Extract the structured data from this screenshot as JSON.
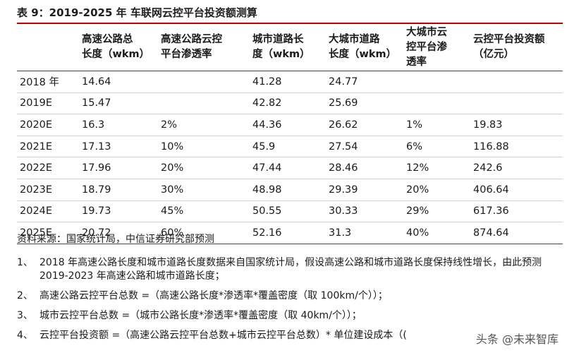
{
  "title": "表 9：2019-2025 年  车联网云控平台投资额测算",
  "table": {
    "headers": [
      "",
      "高速公路总\n长度（wkm）",
      "高速公路云控\n平台渗透率",
      "城市道路长\n度（wkm）",
      "大城市道路\n长度（wkm）",
      "大城市云\n控平台渗\n透率",
      "云控平台投资额\n（亿元）"
    ],
    "rows": [
      [
        "2018 年",
        "14.64",
        "",
        "41.28",
        "24.77",
        "",
        ""
      ],
      [
        "2019E",
        "15.47",
        "",
        "42.82",
        "25.69",
        "",
        ""
      ],
      [
        "2020E",
        "16.3",
        "2%",
        "44.36",
        "26.62",
        "1%",
        "19.83"
      ],
      [
        "2021E",
        "17.13",
        "10%",
        "45.9",
        "27.54",
        "6%",
        "116.88"
      ],
      [
        "2022E",
        "17.96",
        "20%",
        "47.44",
        "28.46",
        "12%",
        "242.6"
      ],
      [
        "2023E",
        "18.79",
        "30%",
        "48.98",
        "29.39",
        "20%",
        "406.64"
      ],
      [
        "2024E",
        "19.73",
        "45%",
        "50.55",
        "30.33",
        "29%",
        "617.36"
      ],
      [
        "2025E",
        "20.72",
        "60%",
        "52.16",
        "31.3",
        "40%",
        "874.64"
      ]
    ]
  },
  "source": "资料来源：国家统计局，中信证券研究部预测",
  "notes": [
    {
      "num": "1、",
      "text": "2018 年高速公路长度和城市道路长度数据来自国家统计局，假设高速公路和城市道路长度保持线性增长，由此预测 2019-2023 年高速公路和城市道路长度；"
    },
    {
      "num": "2、",
      "text": "高速公路云控平台总数 =（高速公路长度*渗透率*覆盖密度（取 100km/个））；"
    },
    {
      "num": "3、",
      "text": "城市云控平台总数 =（城市公路长度*渗透率*覆盖密度（取 40km/个））；"
    },
    {
      "num": "4、",
      "text": "云控平台投资额 =（高速公路云控平台总数+城市云控平台总数）* 单位建设成本（("
    }
  ],
  "watermark": "头条 @未来智库"
}
